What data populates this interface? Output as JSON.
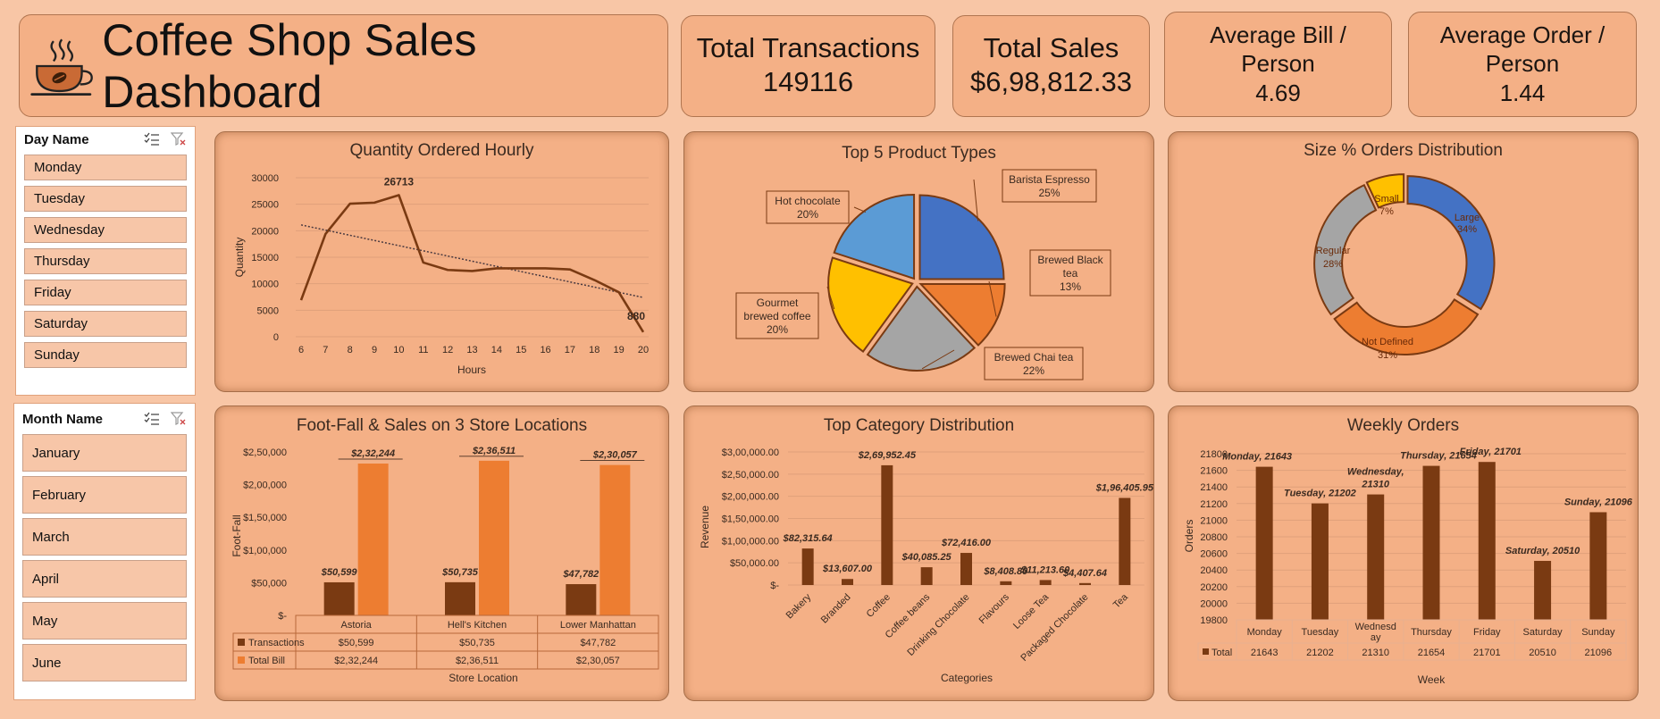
{
  "header": {
    "title": "Coffee Shop Sales Dashboard",
    "logo_icon": "coffee-cup-icon"
  },
  "kpis": {
    "transactions": {
      "label": "Total Transactions",
      "value": "149116"
    },
    "sales": {
      "label": "Total Sales",
      "value": "$6,98,812.33"
    },
    "avg_bill": {
      "label": "Average Bill / Person",
      "value": "4.69"
    },
    "avg_order": {
      "label": "Average Order / Person",
      "value": "1.44"
    }
  },
  "slicers": {
    "day": {
      "title": "Day Name",
      "items": [
        "Monday",
        "Tuesday",
        "Wednesday",
        "Thursday",
        "Friday",
        "Saturday",
        "Sunday"
      ]
    },
    "month": {
      "title": "Month Name",
      "items": [
        "January",
        "February",
        "March",
        "April",
        "May",
        "June"
      ]
    }
  },
  "colors": {
    "brown": "#7a3a12",
    "orange": "#ed7d31",
    "blue": "#4472c4",
    "lightblue": "#5b9bd5",
    "gray": "#a5a5a5",
    "yellow": "#ffc000"
  },
  "chart_data": [
    {
      "id": "hourly",
      "type": "line",
      "title": "Quantity Ordered Hourly",
      "xlabel": "Hours",
      "ylabel": "Quantity",
      "x": [
        6,
        7,
        8,
        9,
        10,
        11,
        12,
        13,
        14,
        15,
        16,
        17,
        18,
        19,
        20
      ],
      "y": [
        6900,
        19400,
        25100,
        25300,
        26713,
        14000,
        12600,
        12400,
        12900,
        12900,
        12900,
        12700,
        10700,
        8400,
        880
      ],
      "ylim": [
        0,
        30000
      ],
      "yticks": [
        "0",
        "5000",
        "10000",
        "15000",
        "20000",
        "25000",
        "30000"
      ],
      "trendline": true,
      "annotations": {
        "max": "26713",
        "min": "880"
      }
    },
    {
      "id": "products",
      "type": "pie",
      "title": "Top 5 Product Types",
      "slices": [
        {
          "label": "Barista Espresso",
          "pct": "25%",
          "value": 25
        },
        {
          "label": "Brewed Black tea",
          "pct": "13%",
          "value": 13
        },
        {
          "label": "Brewed Chai tea",
          "pct": "22%",
          "value": 22
        },
        {
          "label": "Gourmet brewed coffee",
          "pct": "20%",
          "value": 20
        },
        {
          "label": "Hot chocolate",
          "pct": "20%",
          "value": 20
        }
      ]
    },
    {
      "id": "sizes",
      "type": "pie",
      "title": "Size % Orders Distribution",
      "slices": [
        {
          "label": "Large",
          "pct": "34%",
          "value": 34
        },
        {
          "label": "Not Defined",
          "pct": "31%",
          "value": 31
        },
        {
          "label": "Regular",
          "pct": "28%",
          "value": 28
        },
        {
          "label": "Small",
          "pct": "7%",
          "value": 7
        }
      ]
    },
    {
      "id": "stores",
      "type": "bar",
      "title": "Foot-Fall & Sales on 3 Store Locations",
      "xlabel": "Store Location",
      "ylabel": "Foot-Fall",
      "categories": [
        "Astoria",
        "Hell's Kitchen",
        "Lower Manhattan"
      ],
      "series": [
        {
          "name": "Transactions",
          "values": [
            50599,
            50735,
            47782
          ],
          "labels": [
            "$50,599",
            "$50,735",
            "$47,782"
          ]
        },
        {
          "name": "Total Bill",
          "values": [
            232244,
            236511,
            230057
          ],
          "labels": [
            "$2,32,244",
            "$2,36,511",
            "$2,30,057"
          ]
        }
      ],
      "ylim": [
        0,
        250000
      ],
      "yticks": [
        "$-",
        "$50,000",
        "$1,00,000",
        "$1,50,000",
        "$2,00,000",
        "$2,50,000"
      ]
    },
    {
      "id": "categories",
      "type": "bar",
      "title": "Top Category Distribution",
      "xlabel": "Categories",
      "ylabel": "Revenue",
      "categories": [
        "Bakery",
        "Branded",
        "Coffee",
        "Coffee beans",
        "Drinking Chocolate",
        "Flavours",
        "Loose Tea",
        "Packaged Chocolate",
        "Tea"
      ],
      "values": [
        82315.64,
        13607.0,
        269952.45,
        40085.25,
        72416.0,
        8408.8,
        11213.6,
        4407.64,
        196405.95
      ],
      "labels": [
        "$82,315.64",
        "$13,607.00",
        "$2,69,952.45",
        "$40,085.25",
        "$72,416.00",
        "$8,408.80",
        "$11,213.60",
        "$4,407.64",
        "$1,96,405.95"
      ],
      "ylim": [
        0,
        300000
      ],
      "yticks": [
        "$-",
        "$50,000.00",
        "$1,00,000.00",
        "$1,50,000.00",
        "$2,00,000.00",
        "$2,50,000.00",
        "$3,00,000.00"
      ]
    },
    {
      "id": "weekly",
      "type": "bar",
      "title": "Weekly Orders",
      "xlabel": "Week",
      "ylabel": "Orders",
      "categories": [
        "Monday",
        "Tuesday",
        "Wednesday",
        "Thursday",
        "Friday",
        "Saturday",
        "Sunday"
      ],
      "table_categories": [
        "Monday",
        "Tuesday",
        "Wednesd ay",
        "Thursday",
        "Friday",
        "Saturday",
        "Sunday"
      ],
      "values": [
        21643,
        21202,
        21310,
        21654,
        21701,
        20510,
        21096
      ],
      "labels": [
        "Monday, 21643",
        "Tuesday, 21202",
        "Wednesday, 21310",
        "Thursday, 21654",
        "Friday, 21701",
        "Saturday, 20510",
        "Sunday, 21096"
      ],
      "series_name": "Total",
      "ylim": [
        19800,
        21800
      ],
      "yticks": [
        "19800",
        "20000",
        "20200",
        "20400",
        "20600",
        "20800",
        "21000",
        "21200",
        "21400",
        "21600",
        "21800"
      ]
    }
  ]
}
